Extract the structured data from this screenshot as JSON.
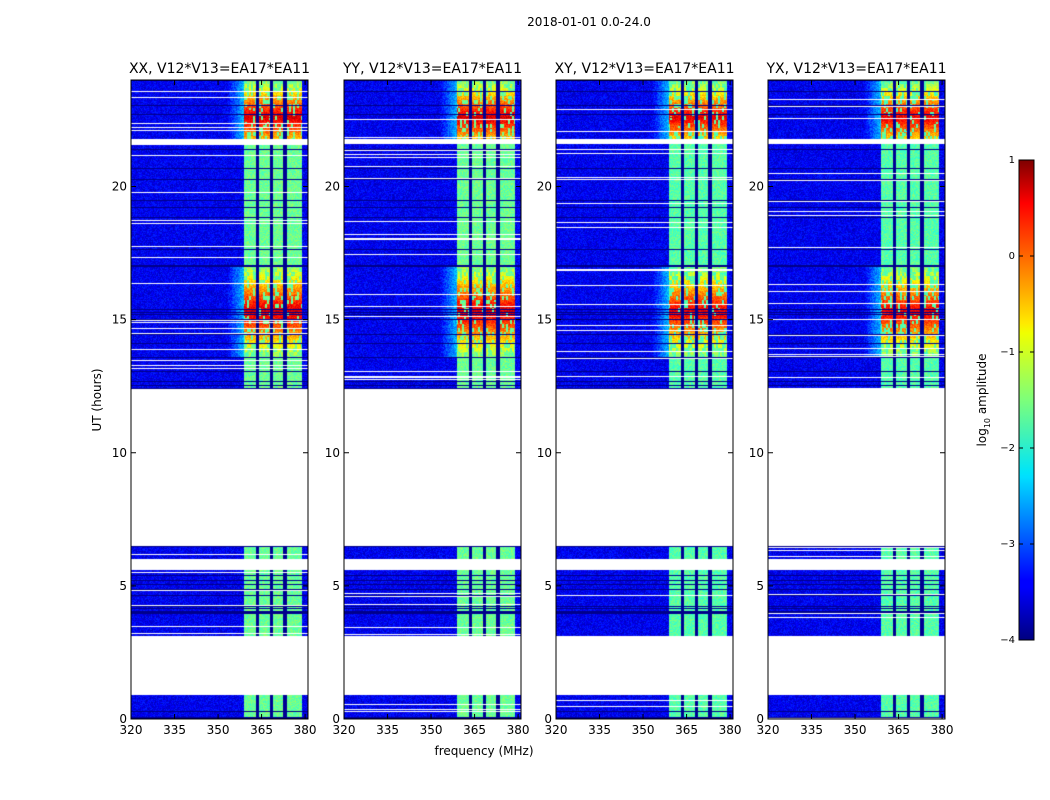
{
  "chart_data": {
    "type": "heatmap",
    "suptitle": "2018-01-01 0.0-24.0",
    "xlabel": "frequency (MHz)",
    "ylabel": "UT (hours)",
    "xlim": [
      320,
      381
    ],
    "ylim": [
      0,
      24
    ],
    "xticks": [
      320,
      335,
      350,
      365,
      380
    ],
    "yticks": [
      0,
      5,
      10,
      15,
      20
    ],
    "band_mhz": [
      359,
      379
    ],
    "sub_band_edges_mhz": [
      363.5,
      368.3,
      373.1
    ],
    "data_ut_ranges": [
      [
        0.0,
        0.9
      ],
      [
        3.1,
        5.6
      ],
      [
        6.0,
        6.5
      ],
      [
        12.4,
        21.6
      ],
      [
        21.8,
        24.0
      ]
    ],
    "panels": [
      {
        "title": "XX, V12*V13=EA17*EA11"
      },
      {
        "title": "YY, V12*V13=EA17*EA11"
      },
      {
        "title": "XY, V12*V13=EA17*EA11"
      },
      {
        "title": "YX, V12*V13=EA17*EA11"
      }
    ],
    "colorbar": {
      "label_main": "log",
      "label_sub": "10",
      "label_rest": " amplitude",
      "min": -4,
      "max": 1,
      "ticks": [
        {
          "value": -4,
          "label": "−4"
        },
        {
          "value": -3,
          "label": "−3"
        },
        {
          "value": -2,
          "label": "−2"
        },
        {
          "value": -1,
          "label": "−1"
        },
        {
          "value": 0,
          "label": "0"
        },
        {
          "value": 1,
          "label": "1"
        }
      ],
      "colormap": "jet"
    }
  }
}
